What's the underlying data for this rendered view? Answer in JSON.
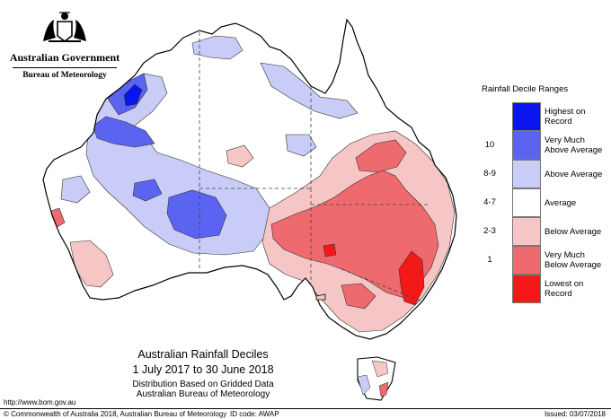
{
  "header": {
    "government": "Australian Government",
    "bureau": "Bureau of Meteorology"
  },
  "legend": {
    "title": "Rainfall Decile Ranges",
    "items": [
      {
        "key": "",
        "label": "Highest on Record",
        "color": "#0a14f0"
      },
      {
        "key": "10",
        "label": "Very Much Above Average",
        "color": "#5a64f0"
      },
      {
        "key": "8-9",
        "label": "Above Average",
        "color": "#c8ccf6"
      },
      {
        "key": "4-7",
        "label": "Average",
        "color": "#ffffff"
      },
      {
        "key": "2-3",
        "label": "Below Average",
        "color": "#f6c6c6"
      },
      {
        "key": "1",
        "label": "Very Much Below Average",
        "color": "#ee6a6e"
      },
      {
        "key": "",
        "label": "Lowest on Record",
        "color": "#f41818"
      }
    ]
  },
  "map": {
    "title": "Australian Rainfall Deciles",
    "period": "1 July 2017 to 30 June 2018",
    "note_line1": "Distribution Based on Gridded Data",
    "note_line2": "Australian Bureau of Meteorology"
  },
  "footer": {
    "url": "http://www.bom.gov.au",
    "copyright": "© Commonwealth of Australia 2018, Australian Bureau of Meteorology",
    "id_code": "ID code: AWAP",
    "issued": "Issued: 03/07/2018"
  }
}
